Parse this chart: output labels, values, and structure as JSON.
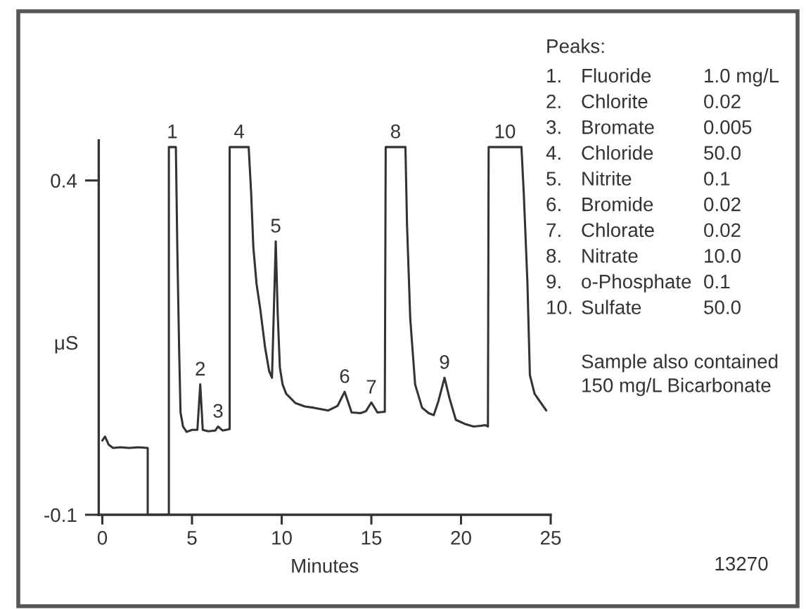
{
  "chart_data": {
    "type": "line",
    "xlabel": "Minutes",
    "ylabel": "μS",
    "xlim": [
      -0.2,
      25
    ],
    "ylim": [
      -0.1,
      0.46
    ],
    "xticks": [
      0,
      5,
      10,
      15,
      20,
      25
    ],
    "yticks": [
      -0.1,
      0.4
    ],
    "series": [
      {
        "color": "#333333",
        "x": [
          0,
          0.15,
          0.35,
          0.6,
          1.0,
          1.5,
          2.0,
          2.53,
          2.53,
          3.71,
          3.71,
          4.1,
          4.18,
          4.28,
          4.36,
          4.5,
          4.7,
          5.0,
          5.3,
          5.46,
          5.6,
          5.9,
          6.3,
          6.45,
          6.7,
          7.1,
          7.1,
          8.16,
          8.3,
          8.42,
          8.6,
          8.81,
          9.07,
          9.3,
          9.46,
          9.67,
          9.78,
          9.9,
          10.05,
          10.25,
          10.77,
          11.3,
          11.81,
          12.6,
          13.12,
          13.51,
          13.9,
          14.4,
          14.7,
          15.0,
          15.34,
          15.75,
          15.8,
          16.9,
          16.99,
          17.17,
          17.44,
          17.83,
          18.2,
          18.48,
          18.74,
          19.08,
          19.35,
          19.71,
          20.2,
          20.7,
          21.1,
          21.36,
          21.5,
          21.54,
          23.37,
          23.5,
          23.7,
          23.84,
          24.1,
          24.75
        ],
        "values": [
          0.011,
          0.017,
          0.005,
          0.0,
          0.001,
          0.0,
          0.001,
          0.0,
          -0.1,
          -0.1,
          0.45,
          0.45,
          0.3,
          0.15,
          0.053,
          0.032,
          0.024,
          0.027,
          0.027,
          0.095,
          0.027,
          0.025,
          0.026,
          0.032,
          0.026,
          0.028,
          0.45,
          0.45,
          0.38,
          0.3,
          0.245,
          0.207,
          0.151,
          0.115,
          0.105,
          0.309,
          0.2,
          0.12,
          0.095,
          0.081,
          0.067,
          0.062,
          0.06,
          0.056,
          0.063,
          0.084,
          0.053,
          0.052,
          0.055,
          0.068,
          0.053,
          0.054,
          0.45,
          0.45,
          0.333,
          0.193,
          0.095,
          0.06,
          0.052,
          0.049,
          0.07,
          0.105,
          0.075,
          0.042,
          0.036,
          0.032,
          0.033,
          0.034,
          0.032,
          0.45,
          0.45,
          0.38,
          0.249,
          0.109,
          0.081,
          0.056
        ]
      }
    ],
    "annotations": [
      {
        "text": "1",
        "x": 3.9,
        "y": 0.45
      },
      {
        "text": "2",
        "x": 5.46,
        "y": 0.095
      },
      {
        "text": "3",
        "x": 6.45,
        "y": 0.032
      },
      {
        "text": "4",
        "x": 7.63,
        "y": 0.45
      },
      {
        "text": "5",
        "x": 9.67,
        "y": 0.309
      },
      {
        "text": "6",
        "x": 13.51,
        "y": 0.084
      },
      {
        "text": "7",
        "x": 15.0,
        "y": 0.068
      },
      {
        "text": "8",
        "x": 16.35,
        "y": 0.45
      },
      {
        "text": "9",
        "x": 19.08,
        "y": 0.105
      },
      {
        "text": "10",
        "x": 22.45,
        "y": 0.45
      },
      "Peaks:",
      "1.",
      "Fluoride",
      "1.0 mg/L",
      "2.",
      "Chlorite",
      "0.02",
      "3.",
      "Bromate",
      "0.005",
      "4.",
      "Chloride",
      "50.0",
      "5.",
      "Nitrite",
      "0.1",
      "6.",
      "Bromide",
      "0.02",
      "7.",
      "Chlorate",
      "0.02",
      "8.",
      "Nitrate",
      "10.0",
      "9.",
      "o-Phosphate",
      "0.1",
      "10.",
      "Sulfate",
      "50.0",
      "Sample also contained\n150 mg/L Bicarbonate",
      "13270"
    ]
  }
}
